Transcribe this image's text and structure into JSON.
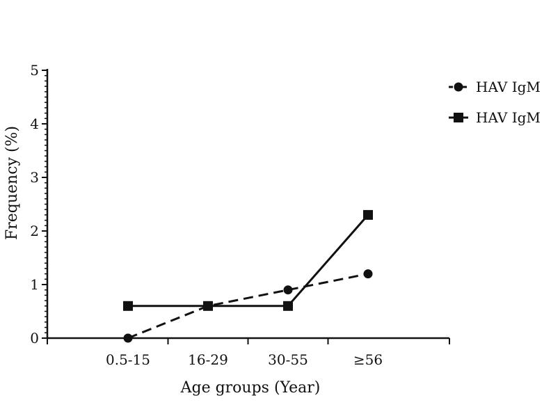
{
  "chart_data": {
    "type": "line",
    "categories": [
      "0.5-15",
      "16-29",
      "30-55",
      "≥56"
    ],
    "series": [
      {
        "name": "HAV IgM",
        "marker": "circle",
        "line_style": "dashed",
        "values": [
          0,
          0.6,
          0.9,
          1.2
        ]
      },
      {
        "name": "HAV IgM",
        "marker": "square",
        "line_style": "solid",
        "values": [
          0.6,
          0.6,
          0.6,
          2.3
        ]
      }
    ],
    "xlabel": "Age groups (Year)",
    "ylabel": "Frequency (%)",
    "ylim": [
      0,
      5
    ],
    "yticks": [
      0,
      1,
      2,
      3,
      4,
      5
    ],
    "grid": false,
    "legend_position": "top-right",
    "colors": {
      "line": "#111111",
      "background": "#ffffff"
    }
  }
}
